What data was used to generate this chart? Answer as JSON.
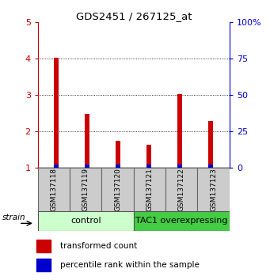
{
  "title": "GDS2451 / 267125_at",
  "samples": [
    "GSM137118",
    "GSM137119",
    "GSM137120",
    "GSM137121",
    "GSM137122",
    "GSM137123"
  ],
  "red_tops": [
    4.02,
    2.48,
    1.75,
    1.63,
    3.02,
    2.3
  ],
  "blue_heights": [
    0.1,
    0.1,
    0.1,
    0.1,
    0.1,
    0.1
  ],
  "bar_bottom": 1.0,
  "ylim_left": [
    1,
    5
  ],
  "ylim_right": [
    0,
    100
  ],
  "yticks_left": [
    1,
    2,
    3,
    4,
    5
  ],
  "yticks_right": [
    0,
    25,
    50,
    75,
    100
  ],
  "ytick_labels_left": [
    "1",
    "2",
    "3",
    "4",
    "5"
  ],
  "ytick_labels_right": [
    "0",
    "25",
    "50",
    "75",
    "100%"
  ],
  "left_tick_color": "#cc0000",
  "right_tick_color": "#0000cc",
  "groups": [
    {
      "label": "control",
      "indices": [
        0,
        1,
        2
      ],
      "color": "#ccffcc"
    },
    {
      "label": "TAC1 overexpressing",
      "indices": [
        3,
        4,
        5
      ],
      "color": "#44cc44"
    }
  ],
  "bar_color_red": "#cc0000",
  "bar_color_blue": "#0000cc",
  "legend_red_label": "transformed count",
  "legend_blue_label": "percentile rank within the sample",
  "strain_label": "strain",
  "bar_width": 0.15
}
